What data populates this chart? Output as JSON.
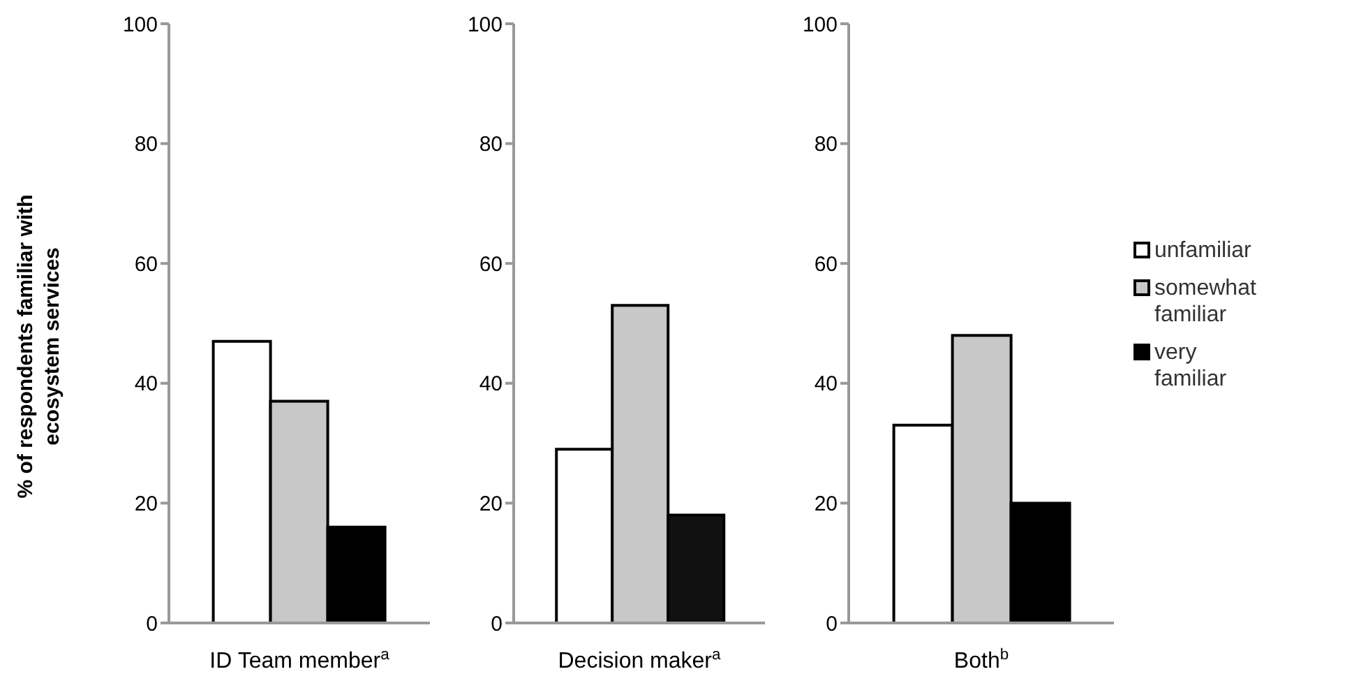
{
  "chart_data": [
    {
      "type": "bar",
      "ylabel": "% of respondents familiar with ecosystem services",
      "categories": [
        "ID Team member$^{a}$"
      ],
      "ylim": [
        0,
        100
      ],
      "yticks": [
        0,
        20,
        40,
        60,
        80,
        100
      ],
      "series": [
        {
          "color": "#ffffff",
          "values": [
            47
          ]
        },
        {
          "color": "#c8c8c8",
          "values": [
            37
          ]
        },
        {
          "color": "#000000",
          "values": [
            16
          ]
        }
      ]
    },
    {
      "type": "bar",
      "categories": [
        "Decision maker$^{a}$"
      ],
      "ylim": [
        0,
        100
      ],
      "yticks": [
        0,
        20,
        40,
        60,
        80,
        100
      ],
      "series": [
        {
          "color": "#ffffff",
          "values": [
            29
          ]
        },
        {
          "color": "#c8c8c8",
          "values": [
            53
          ]
        },
        {
          "color": "#111111",
          "values": [
            18
          ]
        }
      ]
    },
    {
      "type": "bar",
      "categories": [
        "Both$^{b}$"
      ],
      "ylim": [
        0,
        100
      ],
      "yticks": [
        0,
        20,
        40,
        60,
        80,
        100
      ],
      "legend": "right",
      "series": [
        {
          "name": "unfamiliar",
          "color": "#ffffff",
          "values": [
            33
          ]
        },
        {
          "name": "somewhat familiar",
          "color": "#c8c8c8",
          "values": [
            48
          ]
        },
        {
          "name": "very familiar",
          "color": "#000000",
          "values": [
            20
          ]
        }
      ]
    }
  ]
}
